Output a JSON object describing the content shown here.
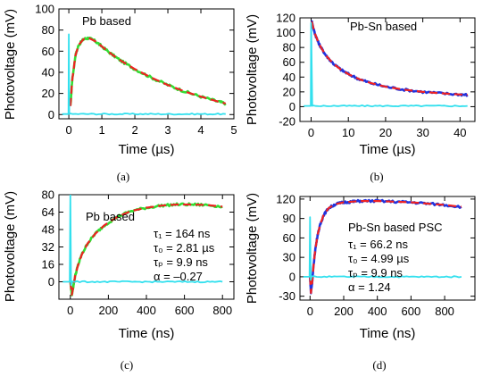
{
  "chart_data": [
    {
      "type": "line",
      "panel": "(a)",
      "annotation": "Pb based",
      "xlabel": "Time (µs)",
      "ylabel": "Photovoltage (mV)",
      "xlim": [
        -0.3,
        5.0
      ],
      "ylim": [
        -4,
        100
      ],
      "xticks": [
        0,
        1,
        2,
        3,
        4,
        5
      ],
      "yticks": [
        0,
        20,
        40,
        60,
        80,
        100
      ],
      "series": [
        {
          "color": "#33dd33",
          "style": "noisy-data",
          "x": [
            0.05,
            0.1,
            0.2,
            0.3,
            0.45,
            0.6,
            0.8,
            1.0,
            1.3,
            1.6,
            2.0,
            2.5,
            3.0,
            3.5,
            4.0,
            4.5,
            4.75
          ],
          "y": [
            8,
            32,
            56,
            66,
            71.5,
            72.5,
            69.5,
            64.5,
            57,
            50.5,
            43,
            35,
            28,
            22,
            17,
            12.5,
            10.5
          ]
        },
        {
          "color": "#ee2222",
          "style": "dashed-fit",
          "x": [
            0.05,
            0.1,
            0.2,
            0.3,
            0.45,
            0.6,
            0.8,
            1.0,
            1.3,
            1.6,
            2.0,
            2.5,
            3.0,
            3.5,
            4.0,
            4.5,
            4.75
          ],
          "y": [
            8,
            32,
            56,
            66,
            71.5,
            72.5,
            69.5,
            64.5,
            57,
            50.5,
            43,
            35,
            28,
            22,
            17,
            12.5,
            10.5
          ]
        },
        {
          "color": "#33e0ee",
          "style": "spike-baseline",
          "x": [
            -0.2,
            -0.01,
            0.0,
            0.015,
            0.05,
            4.75
          ],
          "y": [
            0.5,
            0.5,
            76,
            0.5,
            0.5,
            0.5
          ]
        }
      ]
    },
    {
      "type": "line",
      "panel": "(b)",
      "annotation": "Pb-Sn based",
      "xlabel": "Time (µs)",
      "ylabel": "Photovoltage (mV)",
      "xlim": [
        -3,
        44
      ],
      "ylim": [
        -20,
        120
      ],
      "xticks": [
        0,
        10,
        20,
        30,
        40
      ],
      "yticks": [
        -20,
        0,
        20,
        40,
        60,
        80,
        100,
        120
      ],
      "series": [
        {
          "color": "#2233dd",
          "style": "noisy-data",
          "x": [
            0.2,
            0.5,
            1,
            2,
            3,
            4,
            6,
            8,
            10,
            13,
            16,
            20,
            25,
            30,
            35,
            40,
            42
          ],
          "y": [
            115,
            108,
            99,
            86,
            77,
            69,
            58,
            50,
            44,
            37,
            32,
            27,
            23,
            20,
            18,
            16.5,
            16
          ]
        },
        {
          "color": "#ee2222",
          "style": "dashed-fit",
          "x": [
            0.2,
            0.5,
            1,
            2,
            3,
            4,
            6,
            8,
            10,
            13,
            16,
            20,
            25,
            30,
            35,
            40,
            42
          ],
          "y": [
            115,
            108,
            99,
            86,
            77,
            69,
            58,
            50,
            44,
            37,
            32,
            27,
            23,
            20,
            18,
            16.5,
            16
          ]
        },
        {
          "color": "#33e0ee",
          "style": "spike-baseline",
          "x": [
            -2,
            -0.1,
            0.0,
            0.3,
            0.6,
            42
          ],
          "y": [
            1,
            1,
            113,
            1,
            1,
            1
          ]
        }
      ]
    },
    {
      "type": "line",
      "panel": "(c)",
      "annotation": "Pb based",
      "params": [
        "τ₁ = 164 ns",
        "τ₀ = 2.81 µs",
        "τₚ = 9.9 ns",
        "α = –0.27"
      ],
      "xlabel": "Time (ns)",
      "ylabel": "Photovoltage (mV)",
      "xlim": [
        -60,
        860
      ],
      "ylim": [
        -16,
        80
      ],
      "xticks": [
        0,
        200,
        400,
        600,
        800
      ],
      "yticks": [
        0,
        16,
        32,
        48,
        64,
        80
      ],
      "series": [
        {
          "color": "#33dd33",
          "style": "noisy-data",
          "x": [
            0,
            8,
            15,
            25,
            40,
            60,
            90,
            130,
            180,
            250,
            320,
            400,
            480,
            560,
            640,
            720,
            800
          ],
          "y": [
            0,
            -12,
            -5,
            5,
            15,
            25,
            35,
            44,
            52,
            60,
            65,
            68,
            70,
            71,
            71,
            70.5,
            69
          ]
        },
        {
          "color": "#ee2222",
          "style": "dashed-fit",
          "x": [
            0,
            8,
            15,
            25,
            40,
            60,
            90,
            130,
            180,
            250,
            320,
            400,
            480,
            560,
            640,
            720,
            800
          ],
          "y": [
            0,
            -12,
            -5,
            5,
            15,
            25,
            35,
            44,
            52,
            60,
            65,
            68,
            70,
            71,
            71,
            70.5,
            69
          ]
        },
        {
          "color": "#33e0ee",
          "style": "spike-baseline",
          "x": [
            -40,
            -3,
            0,
            4,
            10,
            800
          ],
          "y": [
            0,
            0,
            80,
            -3,
            0,
            0
          ]
        }
      ]
    },
    {
      "type": "line",
      "panel": "(d)",
      "annotation": "Pb-Sn based PSC",
      "params": [
        "τ₁ = 66.2 ns",
        "τ₀ = 4.99 µs",
        "τₚ = 9.9 ns",
        "α = 1.24"
      ],
      "xlabel": "Time (ns)",
      "ylabel": "Photovoltage (mV)",
      "xlim": [
        -60,
        980
      ],
      "ylim": [
        -36,
        124
      ],
      "xticks": [
        0,
        200,
        400,
        600,
        800
      ],
      "yticks": [
        -30,
        0,
        30,
        60,
        90,
        120
      ],
      "series": [
        {
          "color": "#2233dd",
          "style": "noisy-data",
          "x": [
            0,
            5,
            12,
            20,
            30,
            45,
            60,
            80,
            110,
            150,
            200,
            250,
            300,
            400,
            500,
            600,
            700,
            800,
            900
          ],
          "y": [
            0,
            -25,
            -10,
            15,
            40,
            65,
            80,
            95,
            106,
            112,
            115,
            116,
            117,
            117,
            116,
            115,
            113,
            111,
            108
          ]
        },
        {
          "color": "#ee2222",
          "style": "dashed-fit",
          "x": [
            0,
            5,
            12,
            20,
            30,
            45,
            60,
            80,
            110,
            150,
            200,
            250,
            300,
            400,
            500,
            600,
            700,
            800,
            900
          ],
          "y": [
            0,
            -25,
            -10,
            15,
            40,
            65,
            80,
            95,
            106,
            112,
            115,
            116,
            117,
            117,
            116,
            115,
            113,
            111,
            108
          ]
        },
        {
          "color": "#33e0ee",
          "style": "spike-baseline",
          "x": [
            -40,
            -3,
            0,
            4,
            10,
            900
          ],
          "y": [
            0,
            0,
            92,
            -5,
            0,
            0
          ]
        }
      ]
    }
  ]
}
